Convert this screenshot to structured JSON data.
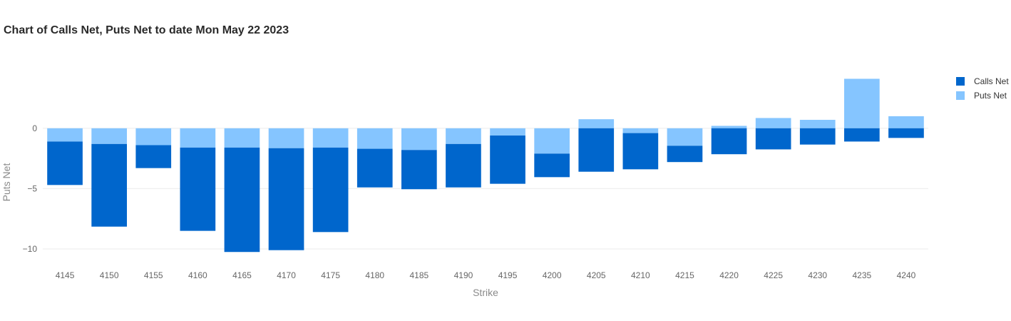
{
  "chart_data": {
    "type": "bar",
    "stacked": true,
    "title": "Chart of Calls Net, Puts Net to date Mon May 22 2023",
    "xlabel": "Strike",
    "ylabel": "Puts Net",
    "categories": [
      "4145",
      "4150",
      "4155",
      "4160",
      "4165",
      "4170",
      "4175",
      "4180",
      "4185",
      "4190",
      "4195",
      "4200",
      "4205",
      "4210",
      "4215",
      "4220",
      "4225",
      "4230",
      "4235",
      "4240"
    ],
    "series": [
      {
        "name": "Puts Net",
        "color": "#85C5FF",
        "values": [
          -1.1,
          -1.3,
          -1.4,
          -1.6,
          -1.6,
          -1.65,
          -1.6,
          -1.7,
          -1.8,
          -1.3,
          -0.6,
          -2.1,
          0.75,
          -0.4,
          -1.45,
          0.2,
          0.85,
          0.7,
          4.1,
          1.0
        ]
      },
      {
        "name": "Calls Net",
        "color": "#0066CC",
        "values": [
          -3.6,
          -6.85,
          -1.9,
          -6.9,
          -8.65,
          -8.45,
          -7.0,
          -3.2,
          -3.25,
          -3.6,
          -4.0,
          -1.95,
          -3.6,
          -3.0,
          -1.35,
          -2.15,
          -1.75,
          -1.35,
          -1.1,
          -0.8
        ]
      }
    ],
    "yticks": [
      "0",
      "−5",
      "−10"
    ],
    "ylim": [
      -11.3,
      5.9
    ],
    "grid": true,
    "legend_position": "right"
  }
}
